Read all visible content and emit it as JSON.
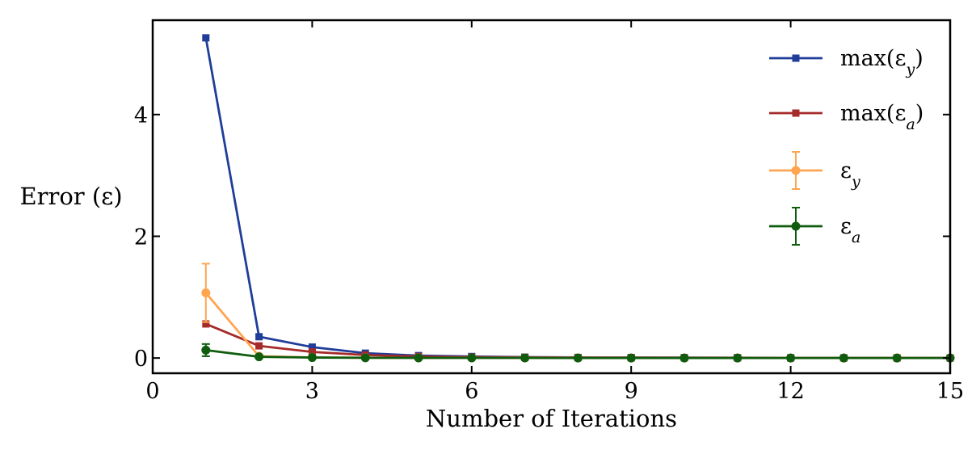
{
  "chart_data": {
    "type": "line",
    "xlabel": "Number of Iterations",
    "ylabel": "Error (ε)",
    "xlim": [
      0,
      15
    ],
    "ylim": [
      -0.25,
      5.55
    ],
    "xticks": [
      0,
      3,
      6,
      9,
      12,
      15
    ],
    "xtick_labels": [
      "0",
      "3",
      "6",
      "9",
      "12",
      "15"
    ],
    "yticks": [
      0,
      2,
      4
    ],
    "ytick_labels": [
      "0",
      "2",
      "4"
    ],
    "grid": false,
    "legend_position": "top-right",
    "series": [
      {
        "name": "max(εy)",
        "legend_base": "max(ε",
        "legend_sub": "y",
        "legend_tail": ")",
        "color": "#1f3d99",
        "marker": "square",
        "x": [
          1,
          2,
          3,
          4,
          5,
          6,
          7,
          8,
          9,
          10,
          11,
          12,
          13,
          14,
          15
        ],
        "y": [
          5.26,
          0.35,
          0.18,
          0.08,
          0.04,
          0.025,
          0.015,
          0.01,
          0.008,
          0.006,
          0.005,
          0.004,
          0.003,
          0.002,
          0.002
        ]
      },
      {
        "name": "max(εa)",
        "legend_base": "max(ε",
        "legend_sub": "a",
        "legend_tail": ")",
        "color": "#a52a2a",
        "marker": "square",
        "x": [
          1,
          2,
          3,
          4,
          5,
          6,
          7,
          8,
          9,
          10,
          11,
          12,
          13,
          14,
          15
        ],
        "y": [
          0.56,
          0.2,
          0.1,
          0.05,
          0.025,
          0.015,
          0.01,
          0.008,
          0.006,
          0.005,
          0.004,
          0.003,
          0.002,
          0.002,
          0.001
        ]
      },
      {
        "name": "εy",
        "legend_base": "ε",
        "legend_sub": "y",
        "legend_tail": "",
        "color": "#ffa550",
        "marker": "circle",
        "x": [
          1,
          2,
          3,
          4,
          5,
          6,
          7,
          8,
          9,
          10,
          11,
          12,
          13,
          14,
          15
        ],
        "y": [
          1.07,
          0.03,
          0.01,
          0.005,
          0.004,
          0.003,
          0.002,
          0.002,
          0.001,
          0.001,
          0.001,
          0.001,
          0.001,
          0.001,
          0.001
        ],
        "yerr": [
          0.48,
          0.02,
          0.01,
          0.005,
          0.004,
          0.003,
          0.002,
          0.002,
          0.001,
          0.001,
          0.001,
          0.001,
          0.001,
          0.001,
          0.001
        ]
      },
      {
        "name": "εa",
        "legend_base": "ε",
        "legend_sub": "a",
        "legend_tail": "",
        "color": "#0f5c0f",
        "marker": "circle",
        "x": [
          1,
          2,
          3,
          4,
          5,
          6,
          7,
          8,
          9,
          10,
          11,
          12,
          13,
          14,
          15
        ],
        "y": [
          0.13,
          0.02,
          0.008,
          0.004,
          0.003,
          0.002,
          0.002,
          0.001,
          0.001,
          0.001,
          0.001,
          0.001,
          0.001,
          0.001,
          0.001
        ],
        "yerr": [
          0.1,
          0.01,
          0.005,
          0.003,
          0.002,
          0.002,
          0.001,
          0.001,
          0.001,
          0.001,
          0.001,
          0.001,
          0.001,
          0.001,
          0.001
        ]
      }
    ]
  }
}
